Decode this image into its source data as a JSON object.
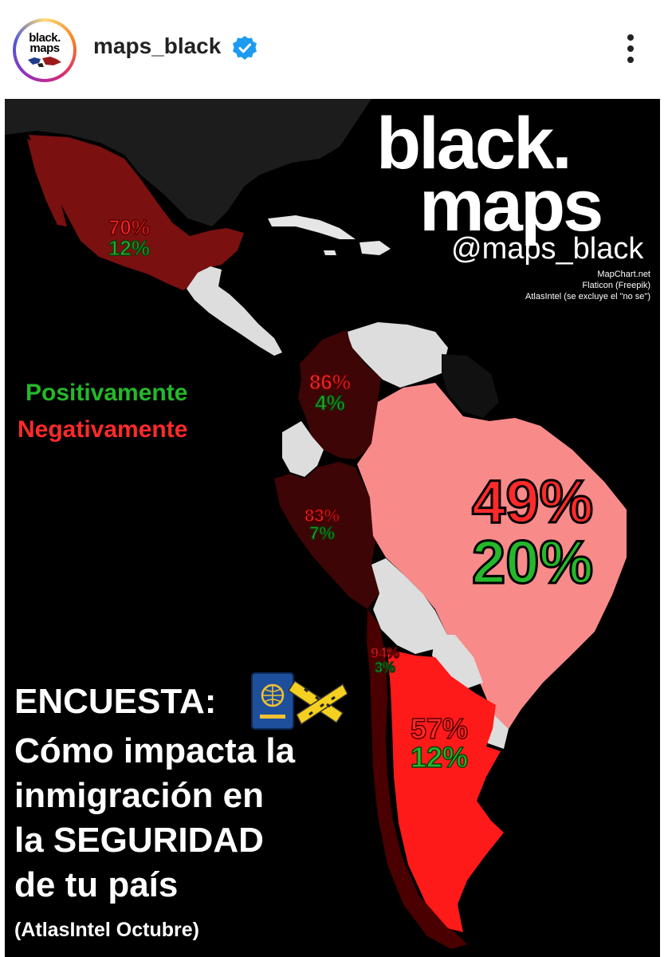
{
  "header": {
    "avatar_text_line1": "black.",
    "avatar_text_line2": "maps",
    "username": "maps_black",
    "verified_icon": "verified-badge-icon",
    "more_icon": "more-vertical-icon"
  },
  "post": {
    "brand_line1": "black.",
    "brand_line2": "maps",
    "handle": "@maps_black",
    "credits": [
      "MapChart.net",
      "Flaticon (Freepik)",
      "AtlasIntel (se excluye el \"no se\")"
    ],
    "legend": {
      "positive": "Positivamente",
      "negative": "Negativamente",
      "positive_color": "#25b82a",
      "negative_color": "#ff2a2a"
    },
    "title": "ENCUESTA:",
    "body_lines": [
      "Cómo impacta la",
      "inmigración en",
      "la SEGURIDAD",
      "de tu país"
    ],
    "source": "(AtlasIntel Octubre)",
    "icons": [
      "passport-icon",
      "crime-scene-tape-icon"
    ],
    "colors": {
      "background": "#000000",
      "no_data": "#dddddd",
      "mexico": "#7a1010",
      "colombia_peru": "#3d0505",
      "brazil": "#f88a8a",
      "argentina": "#ff1a1a",
      "chile": "#4a0000"
    }
  },
  "chart_data": {
    "type": "choropleth",
    "series": [
      {
        "name": "Negativamente",
        "color": "#ff2a2a"
      },
      {
        "name": "Positivamente",
        "color": "#25b82a"
      }
    ],
    "regions": [
      {
        "label_negative": "70%",
        "label_positive": "12%",
        "negative": 70,
        "positive": 12
      },
      {
        "label_negative": "86%",
        "label_positive": "4%",
        "negative": 86,
        "positive": 4
      },
      {
        "label_negative": "83%",
        "label_positive": "7%",
        "negative": 83,
        "positive": 7
      },
      {
        "label_negative": "49%",
        "label_positive": "20%",
        "negative": 49,
        "positive": 20
      },
      {
        "label_negative": "94%",
        "label_positive": "3%",
        "negative": 94,
        "positive": 3
      },
      {
        "label_negative": "57%",
        "label_positive": "12%",
        "negative": 57,
        "positive": 12
      }
    ]
  }
}
